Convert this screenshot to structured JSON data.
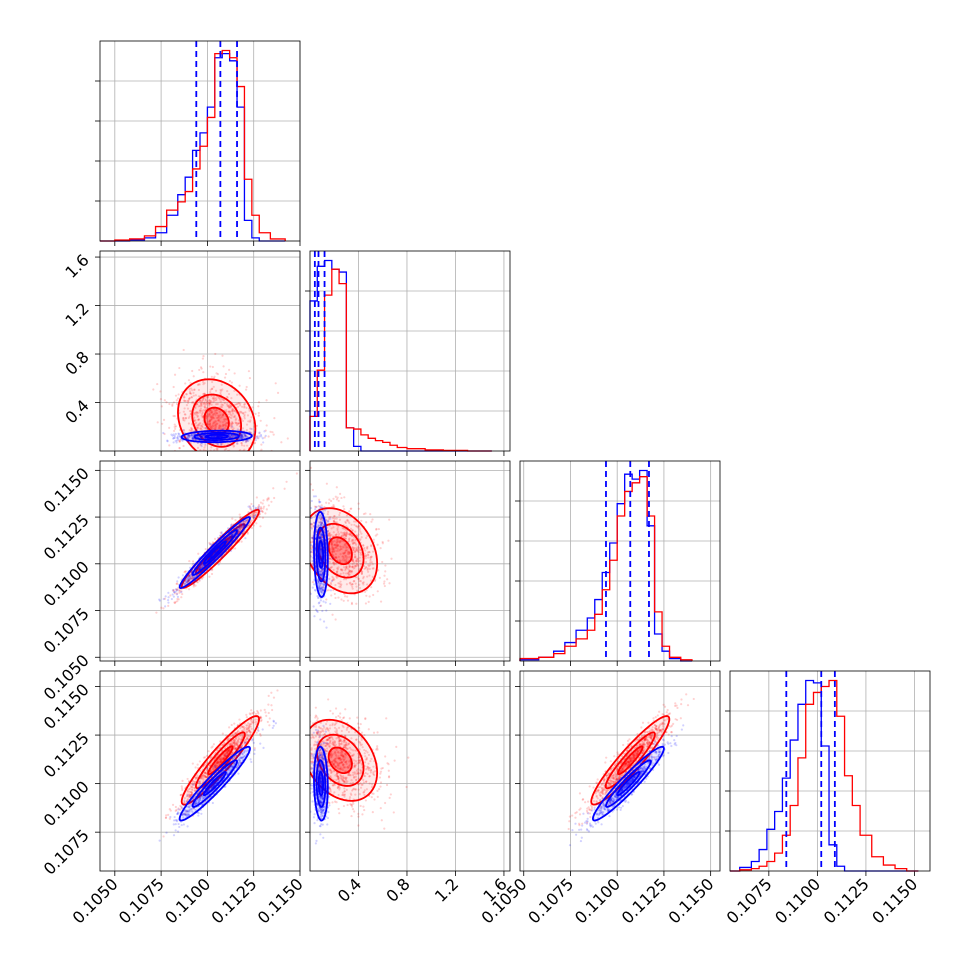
{
  "chart_data": {
    "type": "corner",
    "grid": true,
    "colors": {
      "series_a": "#0000ff",
      "series_b": "#ff0000"
    },
    "params": [
      {
        "key": "p1",
        "range": [
          0.1042,
          0.115
        ]
      },
      {
        "key": "p2",
        "range": [
          0.0,
          1.65
        ]
      },
      {
        "key": "p3",
        "range": [
          0.1048,
          0.1155
        ]
      },
      {
        "key": "p4",
        "range": [
          0.1055,
          0.1158
        ]
      }
    ],
    "x_ticks": [
      [
        "0.1050",
        "0.1075",
        "0.1100",
        "0.1125",
        "0.1150"
      ],
      [
        "0.4",
        "0.8",
        "1.2",
        "1.6"
      ],
      [
        "0.1050",
        "0.1075",
        "0.1100",
        "0.1125",
        "0.1150"
      ],
      [
        "0.1075",
        "0.1100",
        "0.1125",
        "0.1150"
      ]
    ],
    "x_tick_values": [
      [
        0.105,
        0.1075,
        0.11,
        0.1125,
        0.115
      ],
      [
        0.4,
        0.8,
        1.2,
        1.6
      ],
      [
        0.105,
        0.1075,
        0.11,
        0.1125,
        0.115
      ],
      [
        0.1075,
        0.11,
        0.1125,
        0.115
      ]
    ],
    "y_ticks": [
      [],
      [
        "0.4",
        "0.8",
        "1.2",
        "1.6"
      ],
      [
        "0.1050",
        "0.1075",
        "0.1100",
        "0.1125",
        "0.1150"
      ],
      [
        "0.1075",
        "0.1100",
        "0.1125",
        "0.1150"
      ]
    ],
    "y_tick_values": [
      [],
      [
        0.4,
        0.8,
        1.2,
        1.6
      ],
      [
        0.105,
        0.1075,
        0.11,
        0.1125,
        0.115
      ],
      [
        0.1075,
        0.11,
        0.1125,
        0.115
      ]
    ],
    "quantiles": [
      [
        0.1094,
        0.1107,
        0.1116
      ],
      [
        0.04,
        0.07,
        0.12
      ],
      [
        0.1094,
        0.1107,
        0.1117
      ],
      [
        0.1084,
        0.1102,
        0.1109
      ]
    ],
    "histograms": [
      {
        "edges": [
          0.1042,
          0.105,
          0.1058,
          0.1066,
          0.1072,
          0.1078,
          0.1084,
          0.1088,
          0.1092,
          0.1096,
          0.11,
          0.1104,
          0.1108,
          0.1112,
          0.1116,
          0.112,
          0.1124,
          0.1128,
          0.1134,
          0.1142
        ],
        "series_a": [
          0,
          0,
          1,
          3,
          8,
          25,
          45,
          62,
          88,
          105,
          130,
          178,
          182,
          175,
          130,
          20,
          3,
          0,
          0
        ],
        "series_b": [
          0,
          1,
          2,
          5,
          14,
          30,
          38,
          48,
          70,
          92,
          120,
          182,
          185,
          178,
          150,
          60,
          25,
          8,
          2
        ]
      },
      {
        "edges": [
          0.0,
          0.06,
          0.12,
          0.18,
          0.24,
          0.3,
          0.36,
          0.42,
          0.48,
          0.54,
          0.6,
          0.66,
          0.72,
          0.8,
          0.95,
          1.1,
          1.3,
          1.5
        ],
        "series_a": [
          260,
          320,
          330,
          315,
          310,
          40,
          8,
          0,
          0,
          0,
          0,
          0,
          0,
          0,
          0,
          0,
          0
        ],
        "series_b": [
          60,
          140,
          270,
          315,
          290,
          40,
          38,
          28,
          22,
          18,
          15,
          10,
          6,
          4,
          2,
          1,
          0
        ]
      },
      {
        "edges": [
          0.1048,
          0.1058,
          0.1066,
          0.1072,
          0.1078,
          0.1084,
          0.1088,
          0.1092,
          0.1096,
          0.11,
          0.1104,
          0.1108,
          0.1112,
          0.1116,
          0.112,
          0.1124,
          0.1128,
          0.1134,
          0.114
        ],
        "series_a": [
          1,
          3,
          8,
          15,
          25,
          35,
          50,
          72,
          96,
          128,
          152,
          148,
          155,
          110,
          22,
          8,
          2,
          0
        ],
        "series_b": [
          2,
          3,
          6,
          12,
          18,
          25,
          38,
          58,
          82,
          118,
          138,
          145,
          150,
          118,
          40,
          12,
          3,
          1
        ]
      },
      {
        "edges": [
          0.1055,
          0.106,
          0.1066,
          0.107,
          0.1074,
          0.1078,
          0.1082,
          0.1086,
          0.109,
          0.1094,
          0.1098,
          0.1102,
          0.1106,
          0.111,
          0.1114,
          0.1118,
          0.1122,
          0.1128,
          0.1134,
          0.114,
          0.1146,
          0.1152
        ],
        "series_a": [
          0,
          3,
          8,
          18,
          35,
          50,
          78,
          110,
          140,
          160,
          158,
          105,
          22,
          4,
          0,
          0,
          0,
          0,
          0,
          0,
          0
        ],
        "series_b": [
          0,
          1,
          2,
          4,
          8,
          15,
          30,
          55,
          95,
          140,
          150,
          155,
          160,
          130,
          80,
          55,
          30,
          12,
          5,
          2,
          0
        ]
      }
    ],
    "pairs": [
      {
        "row": 1,
        "col": 0,
        "series_a": {
          "center": [
            0.1105,
            0.12
          ],
          "sd": [
            0.001,
            0.025
          ],
          "rho": 0.1
        },
        "series_b": {
          "center": [
            0.1105,
            0.25
          ],
          "sd": [
            0.0011,
            0.18
          ],
          "rho": -0.2
        }
      },
      {
        "row": 2,
        "col": 0,
        "series_a": {
          "center": [
            0.1104,
            0.1106
          ],
          "sd": [
            0.001,
            0.001
          ],
          "rho": 0.97
        },
        "series_b": {
          "center": [
            0.1107,
            0.1108
          ],
          "sd": [
            0.0011,
            0.0011
          ],
          "rho": 0.96
        }
      },
      {
        "row": 2,
        "col": 1,
        "series_a": {
          "center": [
            0.09,
            0.1105
          ],
          "sd": [
            0.03,
            0.0012
          ],
          "rho": -0.1
        },
        "series_b": {
          "center": [
            0.25,
            0.1107
          ],
          "sd": [
            0.16,
            0.0012
          ],
          "rho": -0.3
        }
      },
      {
        "row": 3,
        "col": 0,
        "series_a": {
          "center": [
            0.1104,
            0.11
          ],
          "sd": [
            0.001,
            0.001
          ],
          "rho": 0.95
        },
        "series_b": {
          "center": [
            0.1107,
            0.1112
          ],
          "sd": [
            0.0011,
            0.0012
          ],
          "rho": 0.93
        }
      },
      {
        "row": 3,
        "col": 1,
        "series_a": {
          "center": [
            0.09,
            0.11
          ],
          "sd": [
            0.03,
            0.001
          ],
          "rho": -0.1
        },
        "series_b": {
          "center": [
            0.25,
            0.1112
          ],
          "sd": [
            0.16,
            0.0011
          ],
          "rho": -0.3
        }
      },
      {
        "row": 3,
        "col": 2,
        "series_a": {
          "center": [
            0.1106,
            0.11
          ],
          "sd": [
            0.001,
            0.001
          ],
          "rho": 0.95
        },
        "series_b": {
          "center": [
            0.1107,
            0.1112
          ],
          "sd": [
            0.0011,
            0.0012
          ],
          "rho": 0.93
        }
      }
    ]
  }
}
